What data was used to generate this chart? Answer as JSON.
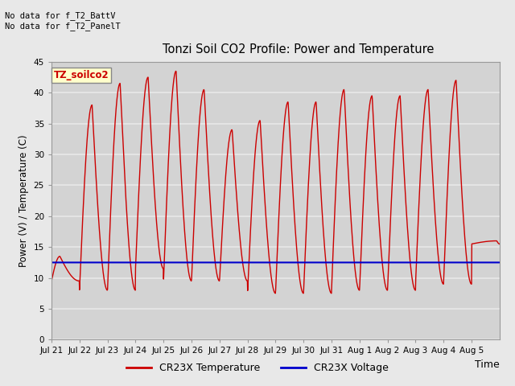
{
  "title": "Tonzi Soil CO2 Profile: Power and Temperature",
  "ylabel": "Power (V) / Temperature (C)",
  "xlabel": "Time",
  "ylim": [
    0,
    45
  ],
  "yticks": [
    0,
    5,
    10,
    15,
    20,
    25,
    30,
    35,
    40,
    45
  ],
  "fig_bg_color": "#e8e8e8",
  "plot_bg_color": "#d3d3d3",
  "grid_color": "#e8e8e8",
  "annotation_text": "No data for f_T2_BattV\nNo data for f_T2_PanelT",
  "legend_label_text": "TZ_soilco2",
  "legend_label_color": "#cc0000",
  "legend_label_bg": "#ffffcc",
  "temp_color": "#cc0000",
  "volt_color": "#0000cc",
  "temp_label": "CR23X Temperature",
  "volt_label": "CR23X Voltage",
  "volt_value": 12.5,
  "xticklabels": [
    "Jul 21",
    "Jul 22",
    "Jul 23",
    "Jul 24",
    "Jul 25",
    "Jul 26",
    "Jul 27",
    "Jul 28",
    "Jul 29",
    "Jul 30",
    "Jul 31",
    "Aug 1",
    "Aug 2",
    "Aug 3",
    "Aug 4",
    "Aug 5"
  ],
  "peak_heights": [
    13.5,
    38.0,
    41.5,
    42.5,
    43.5,
    40.5,
    34.0,
    35.5,
    38.5,
    38.5,
    40.5,
    39.5,
    39.5,
    40.5,
    42.0,
    16.0
  ],
  "valley_heights": [
    9.5,
    8.0,
    8.0,
    11.5,
    9.5,
    9.5,
    9.5,
    7.5,
    7.5,
    7.5,
    8.0,
    8.0,
    8.0,
    9.0,
    9.0,
    15.5
  ],
  "peak_offsets": [
    0.3,
    0.45,
    0.45,
    0.45,
    0.45,
    0.45,
    0.45,
    0.45,
    0.45,
    0.45,
    0.45,
    0.45,
    0.45,
    0.45,
    0.45,
    0.9
  ]
}
